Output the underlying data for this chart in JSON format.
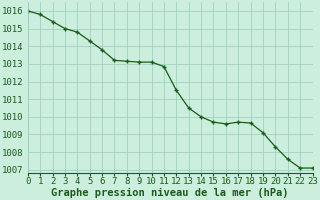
{
  "hours": [
    0,
    1,
    2,
    3,
    4,
    5,
    6,
    7,
    8,
    9,
    10,
    11,
    12,
    13,
    14,
    15,
    16,
    17,
    18,
    19,
    20,
    21,
    22,
    23
  ],
  "pressure": [
    1016.0,
    1015.8,
    1015.4,
    1015.0,
    1014.8,
    1014.3,
    1013.8,
    1013.2,
    1013.15,
    1013.1,
    1013.1,
    1012.85,
    1011.5,
    1010.5,
    1010.0,
    1009.7,
    1009.6,
    1009.7,
    1009.65,
    1009.1,
    1008.3,
    1007.6,
    1007.1,
    1007.1
  ],
  "line_color": "#1a5c1a",
  "marker": "+",
  "marker_size": 3,
  "marker_linewidth": 1.0,
  "line_width": 0.9,
  "bg_color": "#cceedd",
  "grid_color": "#99ccbb",
  "xlabel": "Graphe pression niveau de la mer (hPa)",
  "xlabel_color": "#1a5c1a",
  "tick_color": "#1a5c1a",
  "ylim": [
    1006.8,
    1016.5
  ],
  "yticks": [
    1007,
    1008,
    1009,
    1010,
    1011,
    1012,
    1013,
    1014,
    1015,
    1016
  ],
  "xlim": [
    0,
    23
  ],
  "tick_fontsize": 6.5,
  "label_fontsize": 7.5
}
